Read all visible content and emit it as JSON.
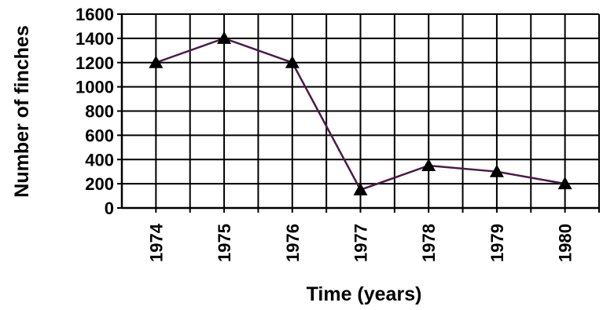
{
  "chart_data": {
    "type": "line",
    "title": "",
    "xlabel": "Time (years)",
    "ylabel": "Number of finches",
    "categories": [
      "1974",
      "1975",
      "1976",
      "1977",
      "1978",
      "1979",
      "1980"
    ],
    "series": [
      {
        "values": [
          1200,
          1400,
          1200,
          150,
          350,
          300,
          200
        ]
      }
    ],
    "y_ticks": [
      "0",
      "200",
      "400",
      "600",
      "800",
      "1000",
      "1200",
      "1400",
      "1600"
    ],
    "ylim": [
      0,
      1600
    ],
    "grid": true,
    "marker": "triangle",
    "colors": {
      "line": "#4b1a47",
      "marker": "#000000",
      "grid": "#000000"
    }
  }
}
